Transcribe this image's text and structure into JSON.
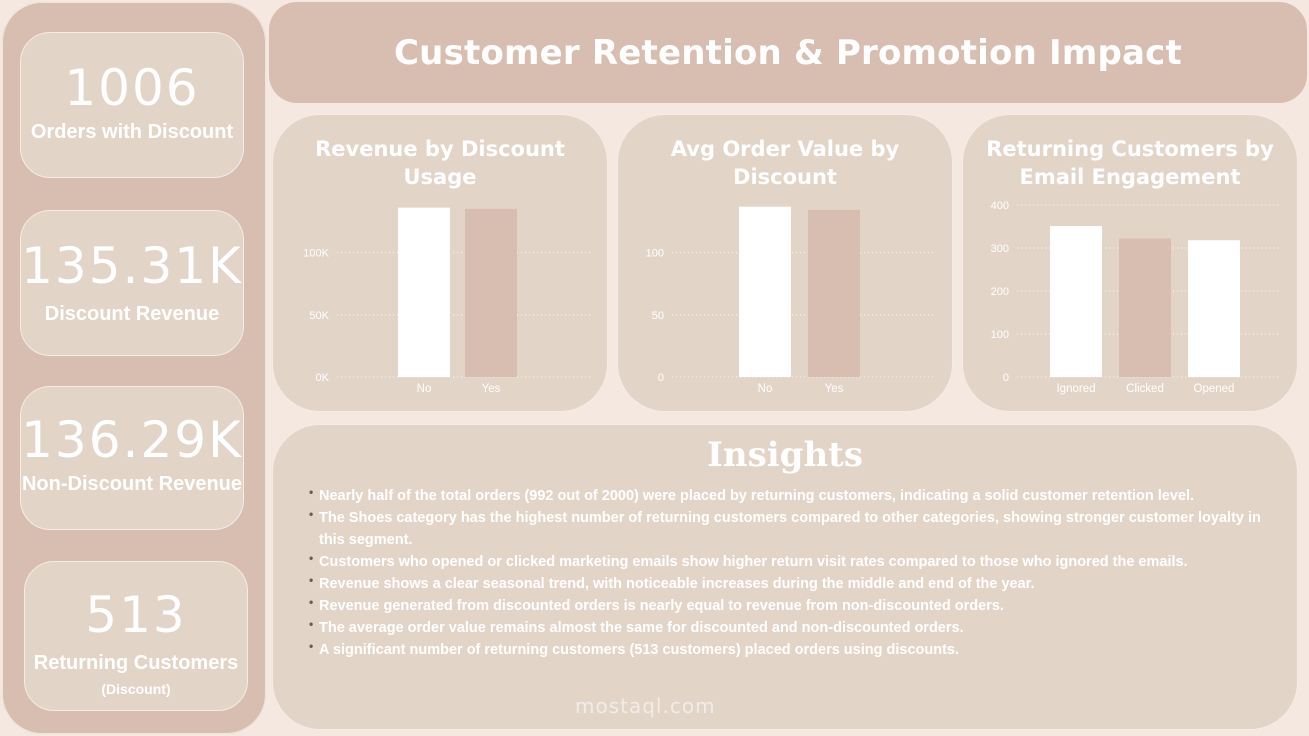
{
  "header": {
    "title": "Customer Retention & Promotion Impact"
  },
  "kpis": [
    {
      "value": "1006",
      "label": "Orders with Discount",
      "sub": ""
    },
    {
      "value": "135.31K",
      "label": "Discount Revenue",
      "sub": ""
    },
    {
      "value": "136.29K",
      "label": "Non-Discount Revenue",
      "sub": ""
    },
    {
      "value": "513",
      "label": "Returning Customers",
      "sub": "(Discount)"
    }
  ],
  "chart_data": [
    {
      "type": "bar",
      "title": "Revenue by Discount Usage",
      "categories": [
        "No",
        "Yes"
      ],
      "values": [
        136290,
        135310
      ],
      "colors": [
        "#ffffff",
        "#d8bdb1"
      ],
      "yticks": [
        0,
        50000,
        100000
      ],
      "ytick_labels": [
        "0K",
        "50K",
        "100K"
      ],
      "ylim": [
        0,
        140000
      ],
      "grid": true
    },
    {
      "type": "bar",
      "title": "Avg Order Value by Discount",
      "categories": [
        "No",
        "Yes"
      ],
      "values": [
        137,
        134.5
      ],
      "colors": [
        "#ffffff",
        "#d8bdb1"
      ],
      "yticks": [
        0,
        50,
        100
      ],
      "ytick_labels": [
        "0",
        "50",
        "100"
      ],
      "ylim": [
        0,
        140
      ],
      "grid": true
    },
    {
      "type": "bar",
      "title": "Returning Customers by Email Engagement",
      "categories": [
        "Ignored",
        "Clicked",
        "Opened"
      ],
      "values": [
        351,
        322,
        318
      ],
      "colors": [
        "#ffffff",
        "#d8bdb1",
        "#ffffff"
      ],
      "yticks": [
        0,
        100,
        200,
        300,
        400
      ],
      "ytick_labels": [
        "0",
        "100",
        "200",
        "300",
        "400"
      ],
      "ylim": [
        0,
        400
      ],
      "grid": true
    }
  ],
  "insights": {
    "title": "Insights",
    "items": [
      "Nearly half of the total orders (992 out of 2000) were placed by returning customers, indicating a solid customer retention level.",
      "The Shoes category has the highest number of returning customers compared to other categories, showing stronger customer loyalty in this segment.",
      "Customers who opened or clicked marketing emails show higher return visit rates compared to those who ignored the emails.",
      "Revenue shows a clear seasonal trend, with noticeable increases during the middle and end of the year.",
      "Revenue generated from discounted orders is nearly equal to revenue from non-discounted orders.",
      "The average order value remains almost the same for discounted and non-discounted orders.",
      "A significant number of returning customers (513 customers) placed orders using discounts."
    ]
  },
  "watermark": "mostaql.com"
}
